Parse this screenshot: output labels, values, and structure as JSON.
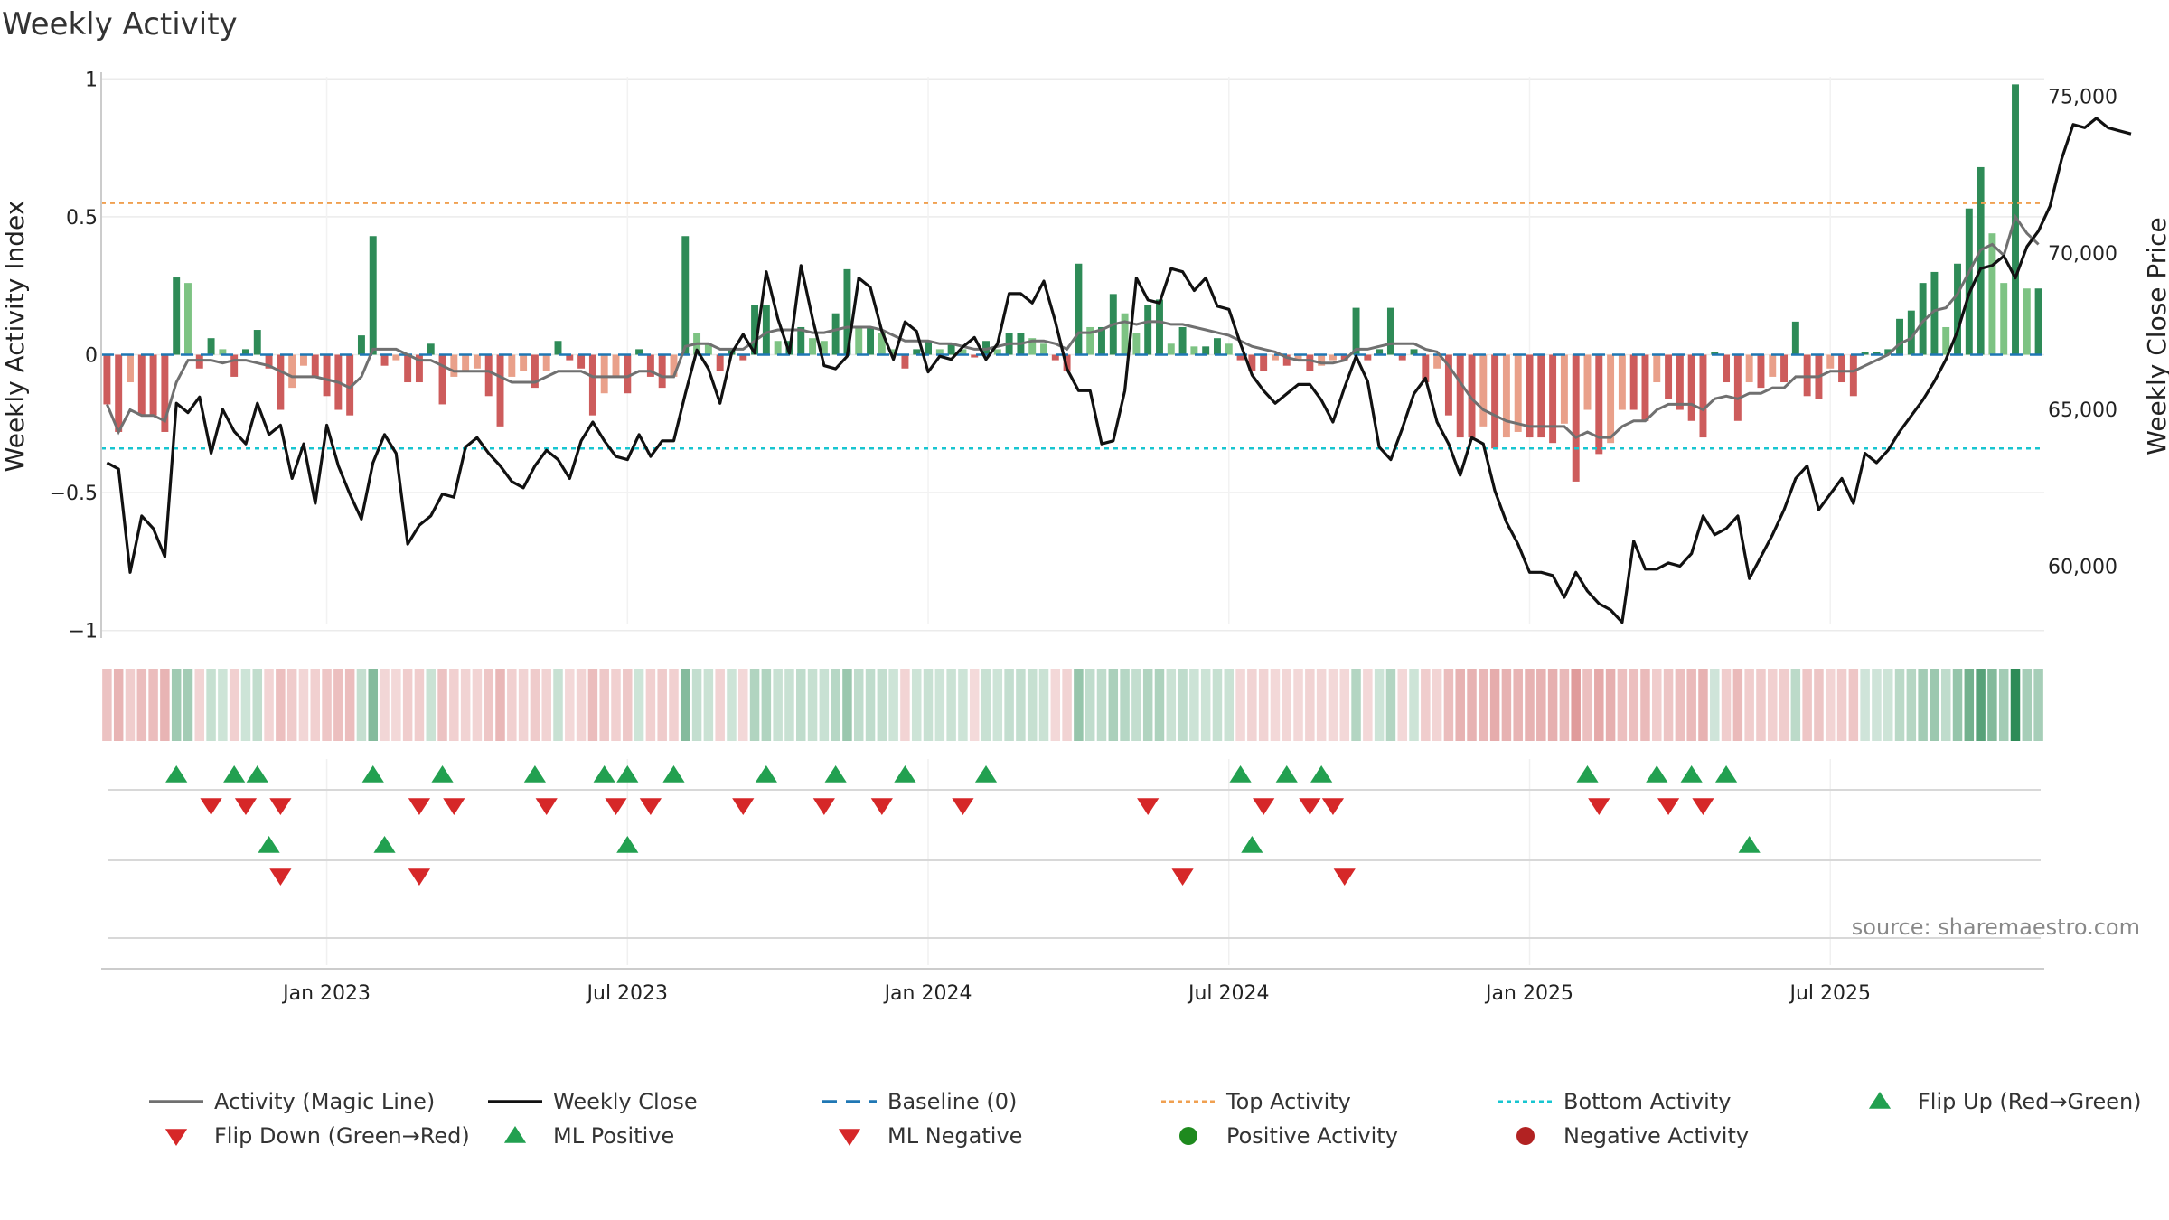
{
  "chart_data": {
    "type": "bar",
    "title": "Weekly Activity",
    "source": "source: sharemaestro.com",
    "ylabel": "Weekly Activity Index",
    "ylabel_right": "Weekly Close Price",
    "ylim": [
      -1.05,
      1.05
    ],
    "ylim_right": [
      57500,
      76000
    ],
    "y_ticks": [
      1,
      0.5,
      0,
      -0.5,
      -1
    ],
    "y_tick_labels": [
      "1",
      "0.5",
      "0",
      "−0.5",
      "−1"
    ],
    "y_right_ticks": [
      75000,
      70000,
      65000,
      60000
    ],
    "y_right_tick_labels": [
      "75,000",
      "70,000",
      "65,000",
      "60,000"
    ],
    "x_tick_labels": [
      "Jan 2023",
      "Jul 2023",
      "Jan 2024",
      "Jul 2024",
      "Jan 2025",
      "Jul 2025"
    ],
    "x_tick_weeks": [
      19,
      45,
      71,
      97,
      123,
      149
    ],
    "top_activity": 0.55,
    "bottom_activity": -0.34,
    "activity": [
      -0.18,
      -0.28,
      -0.1,
      -0.22,
      -0.22,
      -0.28,
      0.28,
      0.26,
      -0.05,
      0.06,
      0.02,
      -0.08,
      0.02,
      0.09,
      -0.05,
      -0.2,
      -0.12,
      -0.04,
      -0.08,
      -0.15,
      -0.2,
      -0.22,
      0.07,
      0.43,
      -0.04,
      -0.02,
      -0.1,
      -0.1,
      0.04,
      -0.18,
      -0.08,
      -0.06,
      -0.05,
      -0.15,
      -0.26,
      -0.08,
      -0.06,
      -0.12,
      -0.06,
      0.05,
      -0.02,
      -0.05,
      -0.22,
      -0.14,
      -0.08,
      -0.14,
      0.02,
      -0.08,
      -0.12,
      -0.08,
      0.43,
      0.08,
      0.04,
      -0.06,
      0.02,
      -0.02,
      0.18,
      0.18,
      0.05,
      0.05,
      0.1,
      0.06,
      0.05,
      0.15,
      0.31,
      0.1,
      0.1,
      0.08,
      0.02,
      -0.05,
      0.02,
      0.05,
      0.02,
      0.04,
      0.02,
      -0.01,
      0.05,
      0.02,
      0.08,
      0.08,
      0.06,
      0.04,
      -0.02,
      -0.06,
      0.33,
      0.1,
      0.1,
      0.22,
      0.15,
      0.08,
      0.18,
      0.2,
      0.04,
      0.1,
      0.03,
      0.03,
      0.06,
      0.04,
      -0.02,
      -0.06,
      -0.06,
      -0.02,
      -0.04,
      -0.02,
      -0.06,
      -0.04,
      -0.02,
      -0.02,
      0.17,
      -0.02,
      0.02,
      0.17,
      -0.02,
      0.02,
      -0.1,
      -0.05,
      -0.22,
      -0.3,
      -0.3,
      -0.26,
      -0.34,
      -0.3,
      -0.28,
      -0.3,
      -0.3,
      -0.32,
      -0.25,
      -0.46,
      -0.2,
      -0.36,
      -0.32,
      -0.2,
      -0.2,
      -0.24,
      -0.1,
      -0.16,
      -0.2,
      -0.24,
      -0.3,
      0.01,
      -0.1,
      -0.24,
      -0.1,
      -0.12,
      -0.08,
      -0.1,
      0.12,
      -0.15,
      -0.16,
      -0.05,
      -0.1,
      -0.15,
      0.01,
      0.01,
      0.02,
      0.13,
      0.16,
      0.26,
      0.3,
      0.1,
      0.33,
      0.53,
      0.68,
      0.44,
      0.26,
      0.98,
      0.24,
      0.24
    ],
    "magic_line": [
      -0.18,
      -0.28,
      -0.2,
      -0.22,
      -0.22,
      -0.24,
      -0.1,
      -0.02,
      -0.02,
      -0.02,
      -0.03,
      -0.02,
      -0.02,
      -0.03,
      -0.04,
      -0.06,
      -0.08,
      -0.08,
      -0.08,
      -0.09,
      -0.1,
      -0.12,
      -0.08,
      0.02,
      0.02,
      0.02,
      0.0,
      -0.02,
      -0.02,
      -0.04,
      -0.06,
      -0.06,
      -0.06,
      -0.06,
      -0.08,
      -0.1,
      -0.1,
      -0.1,
      -0.08,
      -0.06,
      -0.06,
      -0.06,
      -0.08,
      -0.08,
      -0.08,
      -0.08,
      -0.06,
      -0.06,
      -0.08,
      -0.08,
      0.03,
      0.04,
      0.04,
      0.02,
      0.02,
      0.02,
      0.05,
      0.08,
      0.09,
      0.09,
      0.09,
      0.08,
      0.08,
      0.09,
      0.1,
      0.1,
      0.1,
      0.09,
      0.07,
      0.05,
      0.05,
      0.05,
      0.04,
      0.04,
      0.03,
      0.02,
      0.02,
      0.03,
      0.04,
      0.04,
      0.05,
      0.05,
      0.04,
      0.02,
      0.08,
      0.08,
      0.09,
      0.11,
      0.12,
      0.11,
      0.12,
      0.12,
      0.11,
      0.11,
      0.1,
      0.09,
      0.08,
      0.07,
      0.05,
      0.03,
      0.02,
      0.01,
      -0.01,
      -0.02,
      -0.02,
      -0.03,
      -0.03,
      -0.02,
      0.02,
      0.02,
      0.03,
      0.04,
      0.04,
      0.04,
      0.02,
      0.01,
      -0.04,
      -0.1,
      -0.16,
      -0.2,
      -0.22,
      -0.24,
      -0.25,
      -0.26,
      -0.26,
      -0.26,
      -0.26,
      -0.3,
      -0.28,
      -0.3,
      -0.3,
      -0.26,
      -0.24,
      -0.24,
      -0.2,
      -0.18,
      -0.18,
      -0.18,
      -0.2,
      -0.16,
      -0.15,
      -0.16,
      -0.14,
      -0.14,
      -0.12,
      -0.12,
      -0.08,
      -0.08,
      -0.08,
      -0.06,
      -0.06,
      -0.06,
      -0.04,
      -0.02,
      0.0,
      0.04,
      0.06,
      0.12,
      0.16,
      0.17,
      0.22,
      0.3,
      0.38,
      0.4,
      0.36,
      0.5,
      0.44,
      0.4
    ],
    "weekly_close": [
      63300,
      63100,
      59800,
      61600,
      61200,
      60300,
      65200,
      64900,
      65400,
      63600,
      65000,
      64300,
      63900,
      65200,
      64200,
      64500,
      62800,
      63900,
      62000,
      64500,
      63200,
      62300,
      61500,
      63300,
      64200,
      63600,
      60700,
      61300,
      61600,
      62300,
      62200,
      63800,
      64100,
      63600,
      63200,
      62700,
      62500,
      63200,
      63700,
      63400,
      62800,
      64000,
      64600,
      64000,
      63500,
      63400,
      64200,
      63500,
      64000,
      64000,
      65500,
      66900,
      66300,
      65200,
      66800,
      67400,
      66800,
      69400,
      67900,
      66800,
      69600,
      67900,
      66400,
      66300,
      66700,
      69200,
      68900,
      67500,
      66600,
      67800,
      67500,
      66200,
      66700,
      66600,
      67000,
      67300,
      66600,
      67100,
      68700,
      68700,
      68400,
      69100,
      67800,
      66300,
      65600,
      65600,
      63900,
      64000,
      65600,
      69200,
      68500,
      68400,
      69500,
      69400,
      68800,
      69200,
      68300,
      68200,
      67100,
      66100,
      65600,
      65200,
      65500,
      65800,
      65800,
      65300,
      64600,
      65700,
      66700,
      65900,
      63800,
      63400,
      64400,
      65500,
      66000,
      64600,
      63900,
      62900,
      64100,
      63900,
      62400,
      61400,
      60700,
      59800,
      59800,
      59700,
      59000,
      59800,
      59200,
      58800,
      58600,
      58200,
      60800,
      59900,
      59900,
      60100,
      60000,
      60400,
      61600,
      61000,
      61200,
      61600,
      59600,
      60300,
      61000,
      61800,
      62800,
      63200,
      61800,
      62300,
      62800,
      62000,
      63600,
      63300,
      63700,
      64300,
      64800,
      65300,
      65900,
      66600,
      67500,
      68700,
      69500,
      69600,
      69900,
      69200,
      70200,
      70700,
      71500,
      73000,
      74100,
      74000,
      74300,
      74000,
      73900,
      73800
    ],
    "flip_up_r1": [
      6,
      11,
      13,
      23,
      29,
      37,
      43,
      45,
      49,
      57,
      63,
      69,
      76,
      98,
      102,
      105,
      128,
      134,
      137,
      140
    ],
    "flip_down_r1": [
      9,
      12,
      15,
      27,
      30,
      38,
      44,
      47,
      55,
      62,
      67,
      74,
      90,
      100,
      104,
      106,
      129,
      135,
      138
    ],
    "flip_up_r2": [
      14,
      24,
      45,
      99,
      142
    ],
    "flip_down_r2": [
      15,
      27,
      93,
      107
    ],
    "legend": [
      {
        "label": "Activity (Magic Line)",
        "marker": "line",
        "color": "#707070"
      },
      {
        "label": "Weekly Close",
        "marker": "line",
        "color": "#111111"
      },
      {
        "label": "Baseline (0)",
        "marker": "dash",
        "color": "#1f77b4"
      },
      {
        "label": "Top Activity",
        "marker": "dot-line",
        "color": "#f0a050"
      },
      {
        "label": "Bottom Activity",
        "marker": "dot-line",
        "color": "#17c5d0"
      },
      {
        "label": "Flip Up (Red→Green)",
        "marker": "triangle-up",
        "color": "#22a050"
      },
      {
        "label": "Flip Down (Green→Red)",
        "marker": "triangle-down",
        "color": "#d62728"
      },
      {
        "label": "ML Positive",
        "marker": "triangle-up",
        "color": "#22a050"
      },
      {
        "label": "ML Negative",
        "marker": "triangle-down",
        "color": "#d62728"
      },
      {
        "label": "Positive Activity",
        "marker": "circle",
        "color": "#1e8a1e"
      },
      {
        "label": "Negative Activity",
        "marker": "circle",
        "color": "#b22222"
      }
    ],
    "colors": {
      "pos_dark": "#2e8b57",
      "pos_light": "#7dc383",
      "neg_dark": "#cd5c5c",
      "neg_light": "#e9a08a",
      "magic_line": "#707070",
      "close": "#111111",
      "baseline": "#1f77b4",
      "top": "#f0a050",
      "bottom": "#17c5d0",
      "tri_up": "#22a050",
      "tri_down": "#d62728"
    }
  }
}
